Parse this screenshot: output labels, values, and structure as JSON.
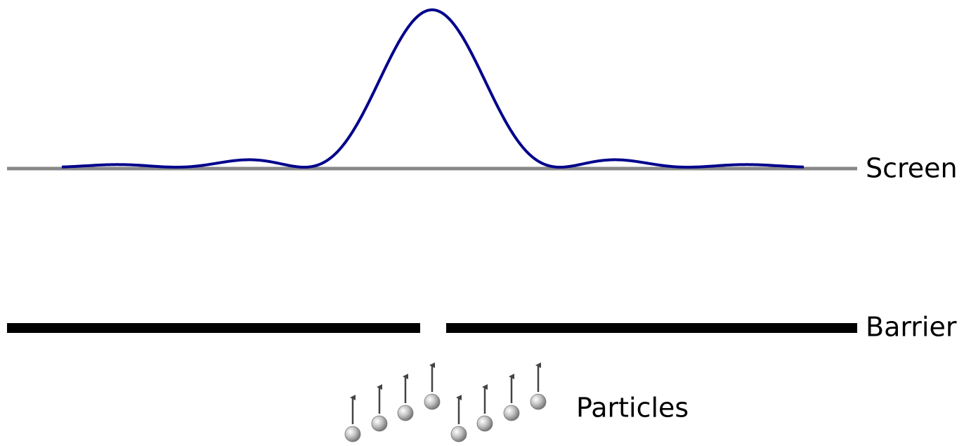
{
  "labels": {
    "screen": "Screen",
    "barrier": "Barrier",
    "particles": "Particles"
  }
}
